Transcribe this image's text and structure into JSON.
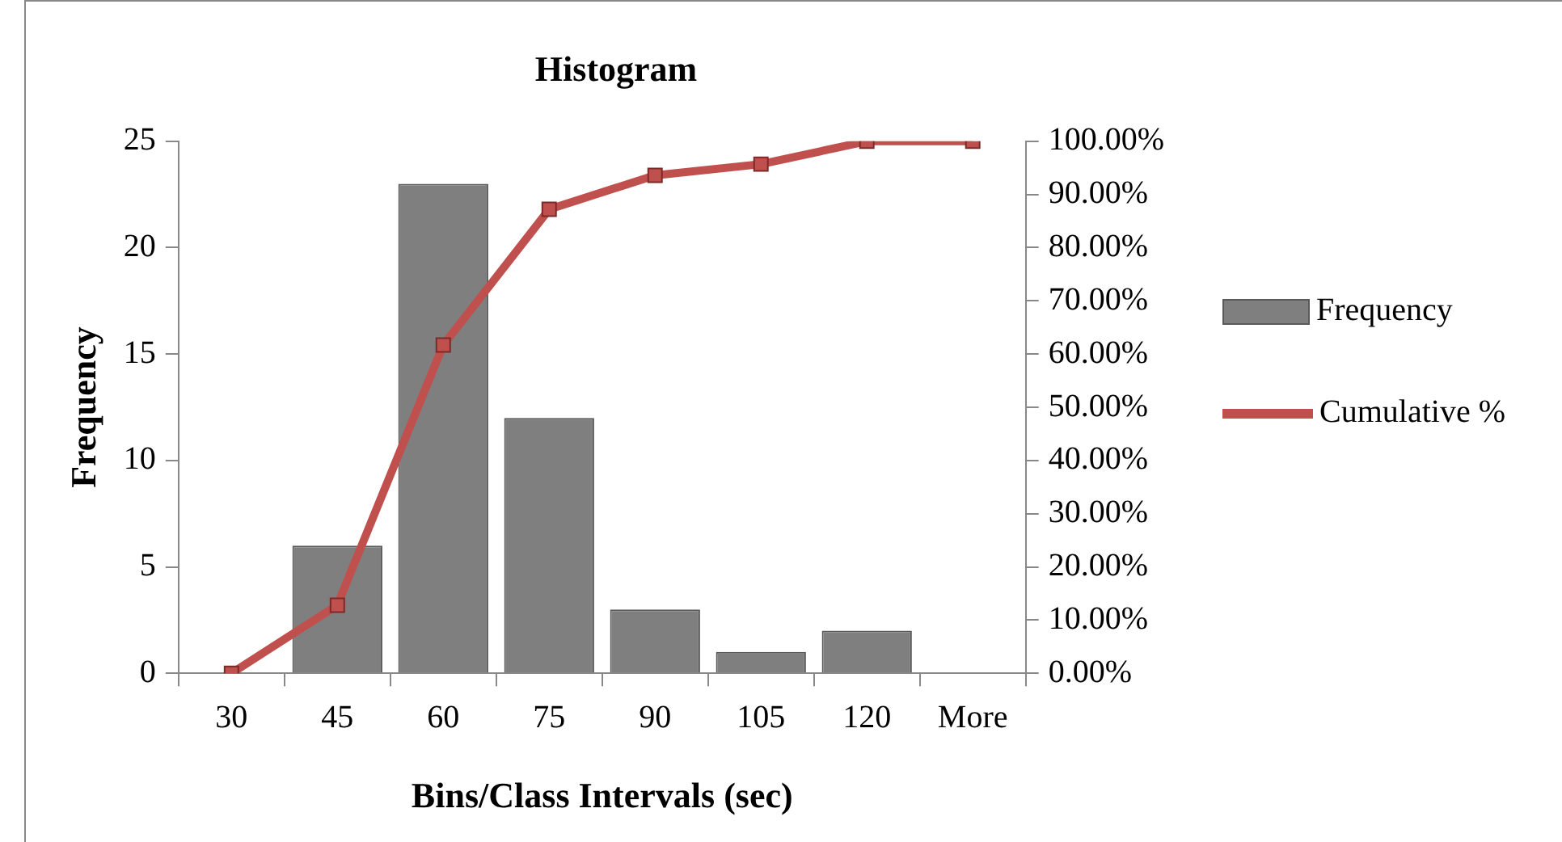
{
  "chart_data": {
    "type": "bar",
    "title": "Histogram",
    "xlabel": "Bins/Class Intervals (sec)",
    "ylabel": "Frequency",
    "categories": [
      "30",
      "45",
      "60",
      "75",
      "90",
      "105",
      "120",
      "More"
    ],
    "series": [
      {
        "name": "Frequency",
        "color": "#7f7f7f",
        "values": [
          0,
          6,
          23,
          12,
          3,
          1,
          2,
          0
        ]
      },
      {
        "name": "Cumulative %",
        "type": "line",
        "axis": "y2",
        "color": "#c0504d",
        "values": [
          0,
          12.8,
          61.7,
          87.2,
          93.6,
          95.7,
          100,
          100
        ]
      }
    ],
    "ylim": [
      0,
      25
    ],
    "yticks": [
      0,
      5,
      10,
      15,
      20,
      25
    ],
    "y2lim": [
      0,
      100
    ],
    "y2ticks": [
      {
        "value": 0,
        "label": "0.00%"
      },
      {
        "value": 10,
        "label": "10.00%"
      },
      {
        "value": 20,
        "label": "20.00%"
      },
      {
        "value": 30,
        "label": "30.00%"
      },
      {
        "value": 40,
        "label": "40.00%"
      },
      {
        "value": 50,
        "label": "50.00%"
      },
      {
        "value": 60,
        "label": "60.00%"
      },
      {
        "value": 70,
        "label": "70.00%"
      },
      {
        "value": 80,
        "label": "80.00%"
      },
      {
        "value": 90,
        "label": "90.00%"
      },
      {
        "value": 100,
        "label": "100.00%"
      }
    ],
    "grid": false,
    "legend": "right",
    "marker": "square"
  }
}
